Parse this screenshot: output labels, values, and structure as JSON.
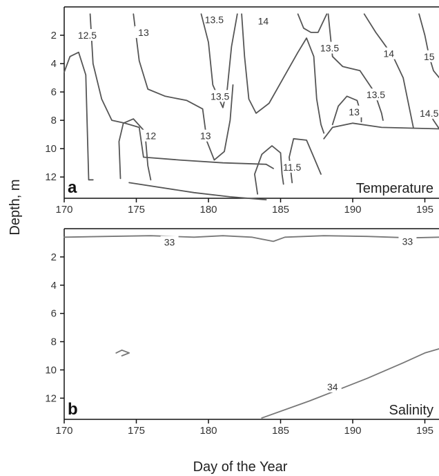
{
  "figure": {
    "ylabel": "Depth, m",
    "xlabel": "Day of the Year"
  },
  "chart_data": [
    {
      "type": "contour",
      "panel_letter": "a",
      "panel_title": "Temperature",
      "xlim": [
        170,
        196
      ],
      "ylim": [
        0,
        13.5
      ],
      "y_inverted": true,
      "x_ticks": [
        170,
        175,
        180,
        185,
        190,
        195
      ],
      "y_ticks": [
        2,
        4,
        6,
        8,
        10,
        12
      ],
      "line_color": "#555555",
      "contours": [
        {
          "level": 12.5,
          "points": [
            [
              170,
              4.6
            ],
            [
              170.4,
              3.5
            ],
            [
              171,
              3.2
            ],
            [
              171.5,
              4.8
            ],
            [
              171.6,
              8.5
            ],
            [
              171.7,
              12.2
            ],
            [
              172,
              12.2
            ]
          ]
        },
        {
          "level": 12.5,
          "points": [
            [
              171.8,
              0.5
            ],
            [
              172,
              4
            ],
            [
              172.6,
              6.5
            ],
            [
              173.3,
              8
            ],
            [
              174.2,
              8.2
            ],
            [
              175.2,
              8.5
            ],
            [
              175.5,
              10.6
            ],
            [
              178,
              10.8
            ],
            [
              181,
              11
            ],
            [
              184,
              11.1
            ],
            [
              184.5,
              11.4
            ]
          ]
        },
        {
          "level": 12,
          "points": [
            [
              173.9,
              12.1
            ],
            [
              173.8,
              9.5
            ],
            [
              174.1,
              8.2
            ],
            [
              174.8,
              7.9
            ],
            [
              175.6,
              8.8
            ],
            [
              175.8,
              11.2
            ],
            [
              176,
              12.2
            ]
          ]
        },
        {
          "level": 12,
          "points": [
            [
              174.5,
              12.4
            ],
            [
              179,
              13.1
            ],
            [
              181.5,
              13.4
            ],
            [
              184,
              13.6
            ]
          ]
        },
        {
          "level": 13,
          "points": [
            [
              174.8,
              0.5
            ],
            [
              175.2,
              3.8
            ],
            [
              175.8,
              5.8
            ],
            [
              177,
              6.3
            ],
            [
              178.5,
              6.6
            ],
            [
              179.6,
              7.2
            ],
            [
              179.9,
              9.5
            ],
            [
              180.4,
              10.8
            ],
            [
              181.1,
              10.2
            ],
            [
              181.5,
              8
            ],
            [
              181.7,
              5.5
            ]
          ]
        },
        {
          "level": 13,
          "points": [
            [
              182.3,
              0.5
            ],
            [
              182.5,
              3.5
            ],
            [
              182.8,
              6.5
            ],
            [
              183.3,
              7.5
            ],
            [
              184.2,
              6.8
            ],
            [
              185.2,
              5
            ],
            [
              186.2,
              3.2
            ],
            [
              186.8,
              2.2
            ],
            [
              187.3,
              3.5
            ],
            [
              187.5,
              6.5
            ],
            [
              187.8,
              8.3
            ],
            [
              188,
              8.9
            ]
          ]
        },
        {
          "level": 13,
          "points": [
            [
              188,
              9.3
            ],
            [
              188.6,
              8.5
            ],
            [
              190,
              8.2
            ],
            [
              192,
              8.5
            ],
            [
              196,
              8.6
            ]
          ]
        },
        {
          "level": 13,
          "points": [
            [
              188.6,
              8.3
            ],
            [
              189,
              7
            ],
            [
              189.6,
              6.3
            ],
            [
              190.3,
              6.6
            ],
            [
              190.6,
              7.6
            ],
            [
              190.6,
              8.1
            ]
          ]
        },
        {
          "level": 13.5,
          "points": [
            [
              179.5,
              0.5
            ],
            [
              180,
              2.5
            ],
            [
              180.3,
              5.5
            ],
            [
              181,
              7.1
            ],
            [
              181.3,
              5.8
            ],
            [
              181.6,
              2.8
            ],
            [
              182,
              0.5
            ]
          ]
        },
        {
          "level": 13.5,
          "points": [
            [
              186.2,
              0.5
            ],
            [
              186.6,
              1.5
            ],
            [
              187.1,
              1.8
            ],
            [
              187.6,
              1.8
            ],
            [
              188.2,
              0.5
            ]
          ]
        },
        {
          "level": 13.5,
          "points": [
            [
              188.3,
              0.5
            ],
            [
              188.6,
              3.5
            ],
            [
              189.3,
              4.2
            ],
            [
              190.5,
              4.5
            ],
            [
              191.5,
              6
            ],
            [
              192,
              7.5
            ],
            [
              192.1,
              8
            ]
          ]
        },
        {
          "level": 14,
          "points": [
            [
              190.8,
              0.5
            ],
            [
              191.6,
              1.8
            ],
            [
              192.1,
              2.5
            ],
            [
              192.8,
              3.5
            ],
            [
              193.5,
              5
            ],
            [
              194.2,
              8.5
            ]
          ]
        },
        {
          "level": 14.5,
          "points": [
            [
              195.2,
              7.2
            ],
            [
              195.6,
              8
            ],
            [
              196,
              8.6
            ]
          ]
        },
        {
          "level": 15,
          "points": [
            [
              194.6,
              0.5
            ],
            [
              195,
              2
            ],
            [
              195.3,
              3.5
            ],
            [
              195.6,
              4.5
            ],
            [
              196,
              5
            ]
          ]
        },
        {
          "level": 11.5,
          "points": [
            [
              183.4,
              13.2
            ],
            [
              183.2,
              11.8
            ],
            [
              183.7,
              10.4
            ],
            [
              184.4,
              9.8
            ],
            [
              185,
              10.3
            ],
            [
              185.1,
              11.8
            ],
            [
              185.2,
              12.5
            ]
          ]
        },
        {
          "level": 11.5,
          "points": [
            [
              185.8,
              12.4
            ],
            [
              185.6,
              10.6
            ],
            [
              185.9,
              9.3
            ],
            [
              186.8,
              9.4
            ],
            [
              187.3,
              10.6
            ],
            [
              187.8,
              11.8
            ]
          ]
        }
      ],
      "labels": [
        {
          "text": "12.5",
          "x": 171.6,
          "y": 2.0
        },
        {
          "text": "13",
          "x": 175.5,
          "y": 1.8
        },
        {
          "text": "13.5",
          "x": 180.4,
          "y": 0.9
        },
        {
          "text": "14",
          "x": 183.8,
          "y": 1.0
        },
        {
          "text": "13.5",
          "x": 188.4,
          "y": 2.9
        },
        {
          "text": "14",
          "x": 192.5,
          "y": 3.3
        },
        {
          "text": "15",
          "x": 195.3,
          "y": 3.5
        },
        {
          "text": "13.5",
          "x": 180.8,
          "y": 6.3
        },
        {
          "text": "13.5",
          "x": 191.6,
          "y": 6.2
        },
        {
          "text": "13",
          "x": 190.1,
          "y": 7.4
        },
        {
          "text": "14.5",
          "x": 195.3,
          "y": 7.5
        },
        {
          "text": "12",
          "x": 176.0,
          "y": 9.1
        },
        {
          "text": "13",
          "x": 179.8,
          "y": 9.1
        },
        {
          "text": "11.5",
          "x": 185.8,
          "y": 11.3
        }
      ]
    },
    {
      "type": "contour",
      "panel_letter": "b",
      "panel_title": "Salinity",
      "xlim": [
        170,
        196
      ],
      "ylim": [
        0,
        13.5
      ],
      "y_inverted": true,
      "x_ticks": [
        170,
        175,
        180,
        185,
        190,
        195
      ],
      "y_ticks": [
        2,
        4,
        6,
        8,
        10,
        12
      ],
      "line_color": "#777777",
      "contours": [
        {
          "level": 33,
          "points": [
            [
              170,
              0.6
            ],
            [
              173,
              0.55
            ],
            [
              176,
              0.5
            ],
            [
              179,
              0.6
            ],
            [
              181,
              0.5
            ],
            [
              183,
              0.6
            ],
            [
              184.5,
              0.9
            ],
            [
              185.3,
              0.6
            ],
            [
              188,
              0.5
            ],
            [
              191,
              0.55
            ],
            [
              194,
              0.65
            ],
            [
              196,
              0.6
            ]
          ]
        },
        {
          "level": 34,
          "points": [
            [
              183.7,
              13.4
            ],
            [
              187,
              12.2
            ],
            [
              191,
              10.6
            ],
            [
              193.5,
              9.5
            ],
            [
              195,
              8.8
            ],
            [
              196,
              8.5
            ]
          ]
        },
        {
          "level": 34,
          "points": [
            [
              173.6,
              8.8
            ],
            [
              174,
              8.6
            ],
            [
              174.5,
              8.8
            ],
            [
              174,
              9
            ]
          ]
        }
      ],
      "labels": [
        {
          "text": "33",
          "x": 177.3,
          "y": 0.95
        },
        {
          "text": "33",
          "x": 193.8,
          "y": 0.9
        },
        {
          "text": "34",
          "x": 188.6,
          "y": 11.2
        }
      ]
    }
  ]
}
